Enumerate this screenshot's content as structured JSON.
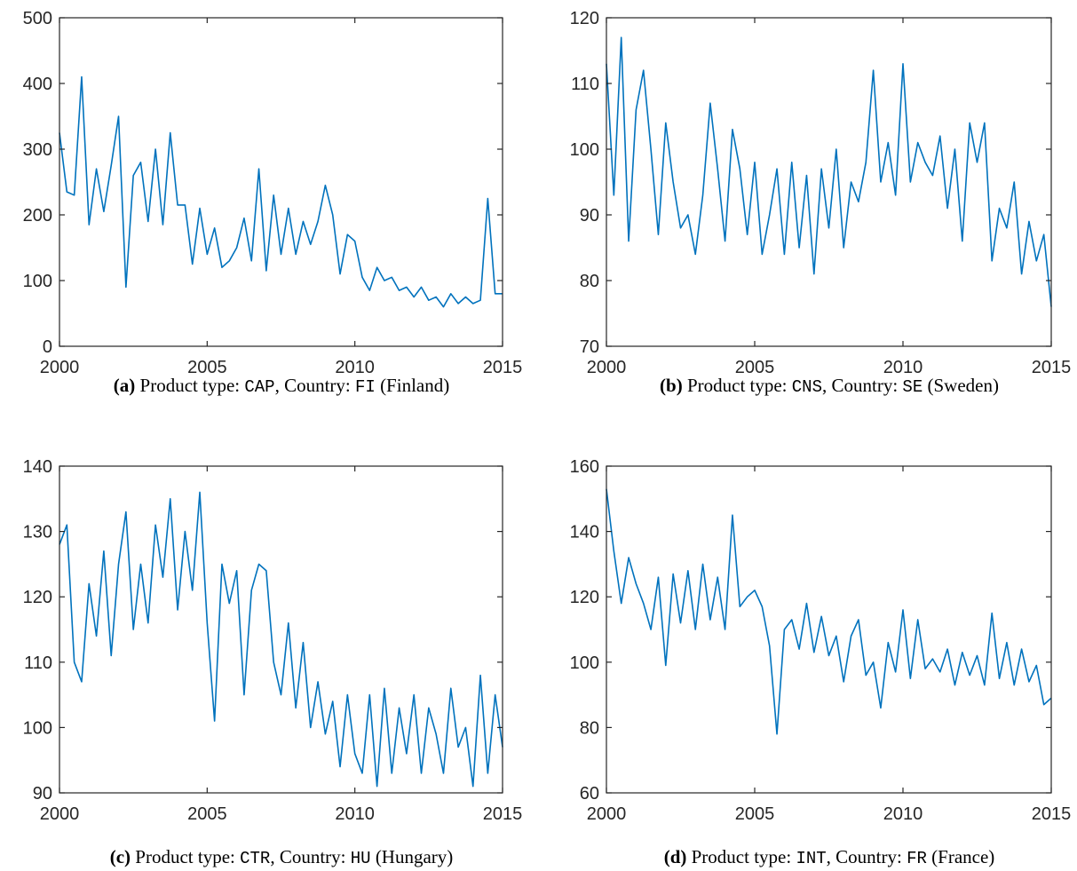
{
  "chart_data": [
    {
      "type": "line",
      "caption": {
        "label": "(a)",
        "product_prefix": "Product type:",
        "product": "CAP",
        "country_prefix": ", Country:",
        "country": "FI",
        "country_name": "(Finland)"
      },
      "x": [
        2000,
        2000.25,
        2000.5,
        2000.75,
        2001,
        2001.25,
        2001.5,
        2001.75,
        2002,
        2002.25,
        2002.5,
        2002.75,
        2003,
        2003.25,
        2003.5,
        2003.75,
        2004,
        2004.25,
        2004.5,
        2004.75,
        2005,
        2005.25,
        2005.5,
        2005.75,
        2006,
        2006.25,
        2006.5,
        2006.75,
        2007,
        2007.25,
        2007.5,
        2007.75,
        2008,
        2008.25,
        2008.5,
        2008.75,
        2009,
        2009.25,
        2009.5,
        2009.75,
        2010,
        2010.25,
        2010.5,
        2010.75,
        2011,
        2011.25,
        2011.5,
        2011.75,
        2012,
        2012.25,
        2012.5,
        2012.75,
        2013,
        2013.25,
        2013.5,
        2013.75,
        2014,
        2014.25,
        2014.5,
        2014.75,
        2015
      ],
      "series": [
        {
          "color": "#0072BD",
          "values": [
            325,
            235,
            230,
            410,
            185,
            270,
            205,
            275,
            350,
            90,
            260,
            280,
            190,
            300,
            185,
            325,
            215,
            215,
            125,
            210,
            140,
            180,
            120,
            130,
            150,
            195,
            130,
            270,
            115,
            230,
            140,
            210,
            140,
            190,
            155,
            190,
            245,
            200,
            110,
            170,
            160,
            105,
            85,
            120,
            100,
            105,
            85,
            90,
            75,
            90,
            70,
            75,
            60,
            80,
            65,
            75,
            65,
            70,
            225,
            80,
            80
          ]
        }
      ],
      "xlim": [
        2000,
        2015
      ],
      "xticks": [
        2000,
        2005,
        2010,
        2015
      ],
      "ylim": [
        0,
        500
      ],
      "yticks": [
        0,
        100,
        200,
        300,
        400,
        500
      ]
    },
    {
      "type": "line",
      "caption": {
        "label": "(b)",
        "product_prefix": "Product type:",
        "product": "CNS",
        "country_prefix": ", Country:",
        "country": "SE",
        "country_name": "(Sweden)"
      },
      "x": [
        2000,
        2000.25,
        2000.5,
        2000.75,
        2001,
        2001.25,
        2001.5,
        2001.75,
        2002,
        2002.25,
        2002.5,
        2002.75,
        2003,
        2003.25,
        2003.5,
        2003.75,
        2004,
        2004.25,
        2004.5,
        2004.75,
        2005,
        2005.25,
        2005.5,
        2005.75,
        2006,
        2006.25,
        2006.5,
        2006.75,
        2007,
        2007.25,
        2007.5,
        2007.75,
        2008,
        2008.25,
        2008.5,
        2008.75,
        2009,
        2009.25,
        2009.5,
        2009.75,
        2010,
        2010.25,
        2010.5,
        2010.75,
        2011,
        2011.25,
        2011.5,
        2011.75,
        2012,
        2012.25,
        2012.5,
        2012.75,
        2013,
        2013.25,
        2013.5,
        2013.75,
        2014,
        2014.25,
        2014.5,
        2014.75,
        2015
      ],
      "series": [
        {
          "color": "#0072BD",
          "values": [
            113,
            93,
            117,
            86,
            106,
            112,
            100,
            87,
            104,
            95,
            88,
            90,
            84,
            93,
            107,
            97,
            86,
            103,
            97,
            87,
            98,
            84,
            90,
            97,
            84,
            98,
            85,
            96,
            81,
            97,
            88,
            100,
            85,
            95,
            92,
            98,
            112,
            95,
            101,
            93,
            113,
            95,
            101,
            98,
            96,
            102,
            91,
            100,
            86,
            104,
            98,
            104,
            83,
            91,
            88,
            95,
            81,
            89,
            83,
            87,
            76
          ]
        }
      ],
      "xlim": [
        2000,
        2015
      ],
      "xticks": [
        2000,
        2005,
        2010,
        2015
      ],
      "ylim": [
        70,
        120
      ],
      "yticks": [
        70,
        80,
        90,
        100,
        110,
        120
      ]
    },
    {
      "type": "line",
      "caption": {
        "label": "(c)",
        "product_prefix": "Product type:",
        "product": "CTR",
        "country_prefix": ", Country:",
        "country": "HU",
        "country_name": "(Hungary)"
      },
      "x": [
        2000,
        2000.25,
        2000.5,
        2000.75,
        2001,
        2001.25,
        2001.5,
        2001.75,
        2002,
        2002.25,
        2002.5,
        2002.75,
        2003,
        2003.25,
        2003.5,
        2003.75,
        2004,
        2004.25,
        2004.5,
        2004.75,
        2005,
        2005.25,
        2005.5,
        2005.75,
        2006,
        2006.25,
        2006.5,
        2006.75,
        2007,
        2007.25,
        2007.5,
        2007.75,
        2008,
        2008.25,
        2008.5,
        2008.75,
        2009,
        2009.25,
        2009.5,
        2009.75,
        2010,
        2010.25,
        2010.5,
        2010.75,
        2011,
        2011.25,
        2011.5,
        2011.75,
        2012,
        2012.25,
        2012.5,
        2012.75,
        2013,
        2013.25,
        2013.5,
        2013.75,
        2014,
        2014.25,
        2014.5,
        2014.75,
        2015
      ],
      "series": [
        {
          "color": "#0072BD",
          "values": [
            128,
            131,
            110,
            107,
            122,
            114,
            127,
            111,
            125,
            133,
            115,
            125,
            116,
            131,
            123,
            135,
            118,
            130,
            121,
            136,
            116,
            101,
            125,
            119,
            124,
            105,
            121,
            125,
            124,
            110,
            105,
            116,
            103,
            113,
            100,
            107,
            99,
            104,
            94,
            105,
            96,
            93,
            105,
            91,
            106,
            93,
            103,
            96,
            105,
            93,
            103,
            99,
            93,
            106,
            97,
            100,
            91,
            108,
            93,
            105,
            97
          ]
        }
      ],
      "xlim": [
        2000,
        2015
      ],
      "xticks": [
        2000,
        2005,
        2010,
        2015
      ],
      "ylim": [
        90,
        140
      ],
      "yticks": [
        90,
        100,
        110,
        120,
        130,
        140
      ]
    },
    {
      "type": "line",
      "caption": {
        "label": "(d)",
        "product_prefix": "Product type:",
        "product": "INT",
        "country_prefix": ", Country:",
        "country": "FR",
        "country_name": "(France)"
      },
      "x": [
        2000,
        2000.25,
        2000.5,
        2000.75,
        2001,
        2001.25,
        2001.5,
        2001.75,
        2002,
        2002.25,
        2002.5,
        2002.75,
        2003,
        2003.25,
        2003.5,
        2003.75,
        2004,
        2004.25,
        2004.5,
        2004.75,
        2005,
        2005.25,
        2005.5,
        2005.75,
        2006,
        2006.25,
        2006.5,
        2006.75,
        2007,
        2007.25,
        2007.5,
        2007.75,
        2008,
        2008.25,
        2008.5,
        2008.75,
        2009,
        2009.25,
        2009.5,
        2009.75,
        2010,
        2010.25,
        2010.5,
        2010.75,
        2011,
        2011.25,
        2011.5,
        2011.75,
        2012,
        2012.25,
        2012.5,
        2012.75,
        2013,
        2013.25,
        2013.5,
        2013.75,
        2014,
        2014.25,
        2014.5,
        2014.75,
        2015
      ],
      "series": [
        {
          "color": "#0072BD",
          "values": [
            153,
            134,
            118,
            132,
            124,
            118,
            110,
            126,
            99,
            127,
            112,
            128,
            110,
            130,
            113,
            126,
            110,
            145,
            117,
            120,
            122,
            117,
            105,
            78,
            110,
            113,
            104,
            118,
            103,
            114,
            102,
            108,
            94,
            108,
            113,
            96,
            100,
            86,
            106,
            97,
            116,
            95,
            113,
            98,
            101,
            97,
            104,
            93,
            103,
            96,
            102,
            93,
            115,
            95,
            106,
            93,
            104,
            94,
            99,
            87,
            89
          ]
        }
      ],
      "xlim": [
        2000,
        2015
      ],
      "xticks": [
        2000,
        2005,
        2010,
        2015
      ],
      "ylim": [
        60,
        160
      ],
      "yticks": [
        60,
        80,
        100,
        120,
        140,
        160
      ]
    }
  ]
}
